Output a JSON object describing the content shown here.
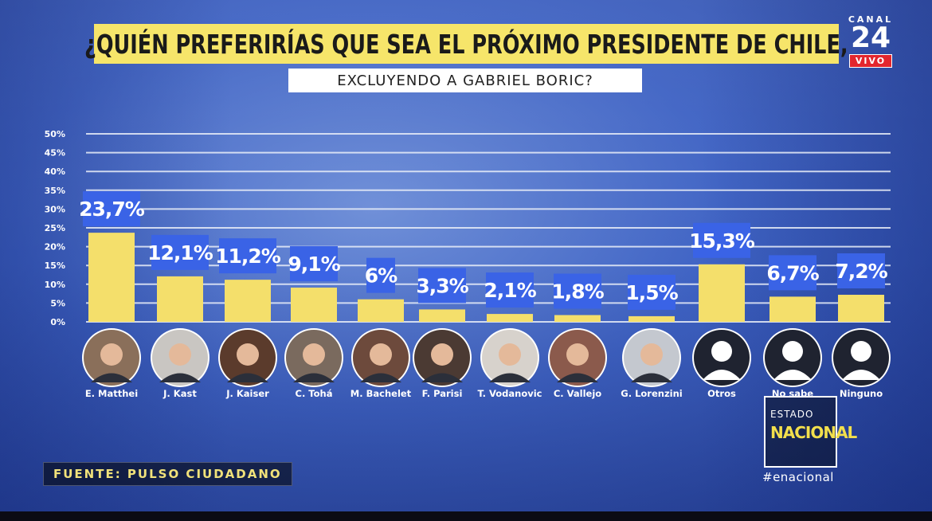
{
  "header": {
    "title": "¿QUIÉN PREFERIRÍAS QUE SEA EL PRÓXIMO PRESIDENTE DE CHILE,",
    "subtitle": "EXCLUYENDO A GABRIEL BORIC?"
  },
  "logo": {
    "canal": "CANAL",
    "number": "24",
    "live": "VIVO"
  },
  "source": "FUENTE: PULSO CIUDADANO",
  "program": {
    "line1": "ESTADO",
    "line2": "NACIONAL",
    "hashtag": "#enacional"
  },
  "colors": {
    "bar": "#f4df6b",
    "label_bg": "#3a63e6",
    "title_bg": "#f6e56a",
    "grid": "#e9eef8"
  },
  "chart_data": {
    "type": "bar",
    "title": "¿QUIÉN PREFERIRÍAS QUE SEA EL PRÓXIMO PRESIDENTE DE CHILE,",
    "subtitle": "EXCLUYENDO A GABRIEL BORIC?",
    "ylim": [
      0,
      50
    ],
    "yticks": [
      "0%",
      "5%",
      "10%",
      "15%",
      "20%",
      "25%",
      "30%",
      "35%",
      "40%",
      "45%",
      "50%"
    ],
    "grid": true,
    "categories": [
      "E. Matthei",
      "J. Kast",
      "J. Kaiser",
      "C. Tohá",
      "M. Bachelet",
      "F. Parisi",
      "T. Vodanovic",
      "C. Vallejo",
      "G. Lorenzini",
      "Otros",
      "No sabe",
      "Ninguno"
    ],
    "values": [
      23.7,
      12.1,
      11.2,
      9.1,
      6,
      3.3,
      2.1,
      1.8,
      1.5,
      15.3,
      6.7,
      7.2
    ],
    "value_labels": [
      "23,7%",
      "12,1%",
      "11,2%",
      "9,1%",
      "6%",
      "3,3%",
      "2,1%",
      "1,8%",
      "1,5%",
      "15,3%",
      "6,7%",
      "7,2%"
    ],
    "avatars": [
      "photo",
      "photo",
      "photo",
      "photo",
      "photo",
      "photo",
      "photo",
      "photo",
      "photo",
      "silhouette",
      "silhouette",
      "silhouette"
    ]
  }
}
